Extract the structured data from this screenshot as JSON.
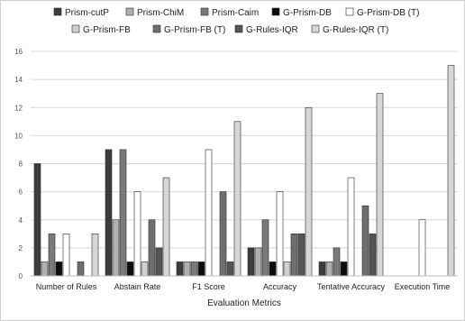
{
  "chart_data": {
    "type": "bar",
    "xlabel": "Evaluation Metrics",
    "ylabel": "",
    "ylim": [
      0,
      16
    ],
    "yticks": [
      0,
      2,
      4,
      6,
      8,
      10,
      12,
      14,
      16
    ],
    "grid": true,
    "legend_position": "top",
    "categories": [
      "Number of Rules",
      "Abstain Rate",
      "F1 Score",
      "Accuracy",
      "Tentative Accuracy",
      "Execution Time"
    ],
    "series": [
      {
        "name": "Prism-cutP",
        "color": "#3d3d3d",
        "values": [
          8,
          9,
          1,
          2,
          1,
          0
        ]
      },
      {
        "name": "Prism-ChiM",
        "color": "#b0b0b0",
        "values": [
          1,
          4,
          1,
          2,
          1,
          0
        ]
      },
      {
        "name": "Prism-Caim",
        "color": "#7a7a7a",
        "values": [
          3,
          9,
          1,
          4,
          2,
          0
        ]
      },
      {
        "name": "G-Prism-DB",
        "color": "#0d0d0d",
        "values": [
          1,
          1,
          1,
          1,
          1,
          0
        ]
      },
      {
        "name": "G-Prism-DB (T)",
        "color": "#ffffff",
        "values": [
          3,
          6,
          9,
          6,
          7,
          4
        ]
      },
      {
        "name": "G-Prism-FB",
        "color": "#d0d0d0",
        "values": [
          0,
          1,
          0,
          1,
          0,
          0
        ]
      },
      {
        "name": "G-Prism-FB (T)",
        "color": "#6e6e6e",
        "values": [
          1,
          4,
          6,
          3,
          5,
          0
        ]
      },
      {
        "name": "G-Rules-IQR",
        "color": "#555555",
        "values": [
          0,
          2,
          1,
          3,
          3,
          0
        ]
      },
      {
        "name": "G-Rules-IQR (T)",
        "color": "#d6d6d6",
        "values": [
          3,
          7,
          11,
          12,
          13,
          15
        ]
      }
    ]
  }
}
